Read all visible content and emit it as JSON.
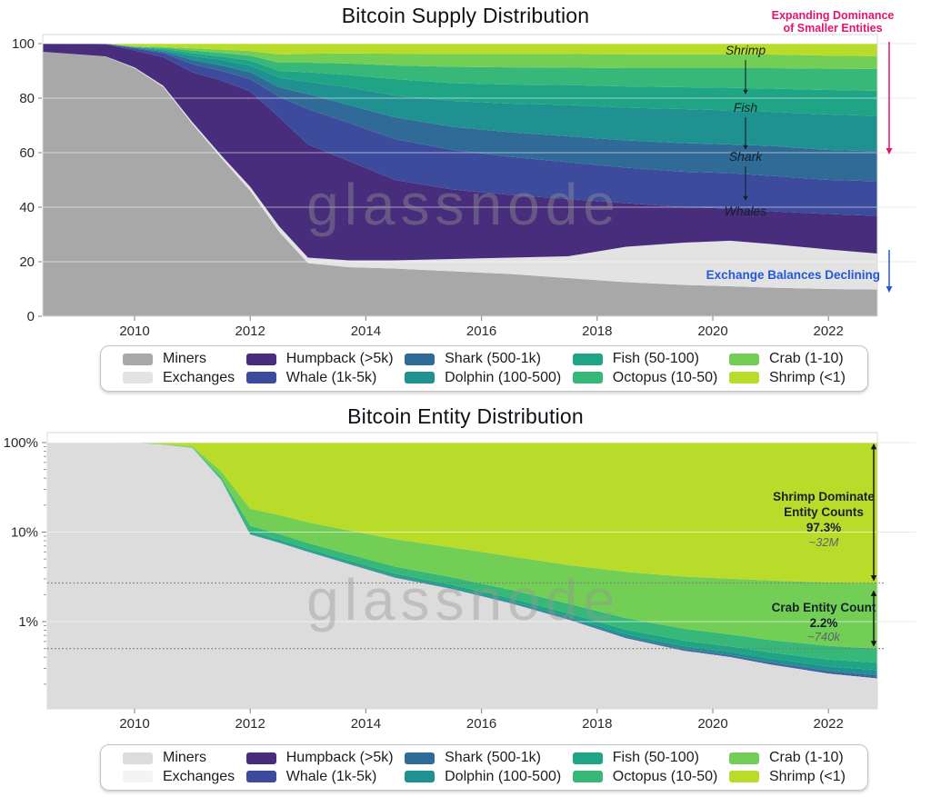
{
  "watermark": "glassnode",
  "chart_data": [
    {
      "type": "area",
      "stacked": true,
      "name": "supply",
      "title": "Bitcoin Supply Distribution",
      "x": {
        "years": [
          2008.4,
          2009.5,
          2010,
          2010.5,
          2011,
          2011.5,
          2012,
          2012.5,
          2013,
          2013.7,
          2014.5,
          2015.5,
          2016.5,
          2017.5,
          2018.5,
          2019.5,
          2020.3,
          2021,
          2022,
          2022.9
        ]
      },
      "x_tick_labels": [
        "2010",
        "2012",
        "2014",
        "2016",
        "2018",
        "2020",
        "2022"
      ],
      "x_tick_years": [
        2010,
        2012,
        2014,
        2016,
        2018,
        2020,
        2022
      ],
      "y_axis": {
        "scale": "linear",
        "range": [
          0,
          100
        ],
        "ticks": [
          {
            "v": 0,
            "label": "0"
          },
          {
            "v": 20,
            "label": "20"
          },
          {
            "v": 40,
            "label": "40"
          },
          {
            "v": 60,
            "label": "60"
          },
          {
            "v": 80,
            "label": "80"
          },
          {
            "v": 100,
            "label": "100"
          }
        ],
        "grid_values": [
          20,
          40,
          60,
          80,
          100
        ]
      },
      "series": [
        {
          "name": "Miners",
          "color": "#a8a8a8",
          "values": [
            97,
            95.3,
            91,
            84,
            70.5,
            58,
            46,
            31,
            19.5,
            18,
            17.5,
            16.5,
            15.5,
            14,
            12.5,
            11.5,
            11,
            10.5,
            10,
            9.8
          ]
        },
        {
          "name": "Exchanges",
          "color": "#e3e3e3",
          "values": [
            0,
            0.1,
            0.3,
            0.5,
            0.7,
            1,
            1.5,
            2,
            2,
            2.5,
            3,
            4.5,
            6,
            8,
            13,
            15.5,
            16.7,
            16,
            14.5,
            13.2
          ]
        },
        {
          "name": "Humpback (>5k)",
          "color": "#472d7b",
          "values": [
            3,
            4.5,
            6.2,
            10.5,
            18.3,
            27.5,
            35,
            40,
            41.5,
            36.5,
            29.5,
            25.5,
            23,
            21,
            16,
            13,
            11.8,
            12,
            13,
            13.8
          ]
        },
        {
          "name": "Whale (1k-5k)",
          "color": "#3d4b9c",
          "values": [
            0,
            0.1,
            0.7,
            1.5,
            3,
            3.5,
            4.5,
            7.5,
            13,
            14,
            15,
            14.5,
            14,
            13.5,
            13,
            13,
            13,
            13,
            12.5,
            12.7
          ]
        },
        {
          "name": "Shark (500-1k)",
          "color": "#2f6b96",
          "values": [
            0,
            0.1,
            0.3,
            0.5,
            1.5,
            2,
            2.5,
            3.5,
            5.5,
            6.5,
            8,
            8.5,
            9,
            9.5,
            10,
            10.5,
            10.5,
            11,
            11,
            11
          ]
        },
        {
          "name": "Dolphin (100-500)",
          "color": "#1f9190",
          "values": [
            0,
            0,
            0.2,
            0.6,
            1.5,
            2,
            2.5,
            3.5,
            4.5,
            6.5,
            8,
            9.5,
            10.5,
            11.5,
            12,
            12.5,
            12.5,
            12.5,
            13,
            13
          ]
        },
        {
          "name": "Fish (50-100)",
          "color": "#20a486",
          "values": [
            0,
            0,
            0.1,
            0.5,
            1,
            1.3,
            1.8,
            2.5,
            3.5,
            4.5,
            6,
            6.5,
            7,
            7.3,
            7.8,
            8,
            8.3,
            8.5,
            9,
            9.2
          ]
        },
        {
          "name": "Octopus (10-50)",
          "color": "#37b878",
          "values": [
            0,
            0,
            0.1,
            0.4,
            1,
            1.3,
            1.8,
            3,
            3.5,
            4.2,
            5,
            6,
            6.3,
            6.4,
            6.7,
            7,
            7.2,
            7.5,
            7.8,
            8
          ]
        },
        {
          "name": "Crab (1-10)",
          "color": "#72ce55",
          "values": [
            0,
            0,
            0.05,
            0.3,
            0.8,
            1.2,
            1.7,
            3,
            3.3,
            3.7,
            4.3,
            4.7,
            4.9,
            5,
            5.1,
            5.1,
            5.1,
            5,
            4.8,
            4.7
          ]
        },
        {
          "name": "Shrimp (<1)",
          "color": "#b9dc2a",
          "values": [
            0,
            0,
            1.05,
            1.2,
            1.7,
            2.2,
            2.7,
            4,
            3.7,
            3.6,
            3.7,
            3.8,
            3.8,
            3.8,
            3.9,
            3.9,
            3.9,
            4,
            4.4,
            4.6
          ]
        }
      ],
      "annotations": {
        "expanding_dominance": {
          "lines": [
            "Expanding Dominance",
            "of Smaller Entities"
          ],
          "color": "#e3146e"
        },
        "exchange_declining": {
          "text": "Exchange Balances Declining",
          "color": "#2458d8"
        },
        "band_labels": [
          "Shrimp",
          "Fish",
          "Shark",
          "Whales"
        ]
      }
    },
    {
      "type": "area",
      "stacked": true,
      "name": "entity",
      "title": "Bitcoin Entity Distribution",
      "x": {
        "years": [
          2008.4,
          2009.5,
          2010,
          2010.5,
          2011,
          2011.5,
          2012,
          2012.5,
          2013,
          2013.7,
          2014.5,
          2015.5,
          2016.5,
          2017.5,
          2018.5,
          2019.5,
          2020.3,
          2021,
          2022,
          2022.9
        ]
      },
      "x_tick_labels": [
        "2010",
        "2012",
        "2014",
        "2016",
        "2018",
        "2020",
        "2022"
      ],
      "x_tick_years": [
        2010,
        2012,
        2014,
        2016,
        2018,
        2020,
        2022
      ],
      "y_axis": {
        "scale": "log",
        "range_pct": [
          0.107,
          100
        ],
        "ticks": [
          {
            "v": 100,
            "label": "100%"
          },
          {
            "v": 10,
            "label": "10%"
          },
          {
            "v": 1,
            "label": "1%"
          }
        ],
        "grid_values": [
          100,
          10,
          1
        ]
      },
      "series": [
        {
          "name": "Miners",
          "color": "#dcdcdc",
          "values": [
            100,
            100,
            99.8,
            95,
            87,
            38,
            9.4,
            7.6,
            6,
            4.4,
            3.1,
            2.3,
            1.6,
            1.05,
            0.65,
            0.47,
            0.4,
            0.33,
            0.26,
            0.23
          ]
        },
        {
          "name": "Exchanges",
          "color": "#f4f4f4",
          "values": [
            0,
            0,
            0.005,
            0.005,
            0.005,
            0.01,
            0.008,
            0.007,
            0.006,
            0.005,
            0.004,
            0.003,
            0.003,
            0.002,
            0.002,
            0.002,
            0.002,
            0.002,
            0.002,
            0.002
          ]
        },
        {
          "name": "Humpback (>5k)",
          "color": "#472d7b",
          "values": [
            0,
            0,
            0.001,
            0.002,
            0.003,
            0.004,
            0.004,
            0.004,
            0.003,
            0.003,
            0.003,
            0.003,
            0.003,
            0.002,
            0.002,
            0.002,
            0.002,
            0.002,
            0.002,
            0.002
          ]
        },
        {
          "name": "Whale (1k-5k)",
          "color": "#3d4b9c",
          "values": [
            0,
            0,
            0.002,
            0.004,
            0.006,
            0.01,
            0.009,
            0.009,
            0.008,
            0.008,
            0.007,
            0.007,
            0.007,
            0.006,
            0.006,
            0.006,
            0.006,
            0.006,
            0.006,
            0.006
          ]
        },
        {
          "name": "Shark (500-1k)",
          "color": "#2f6b96",
          "values": [
            0,
            0,
            0.003,
            0.01,
            0.03,
            0.07,
            0.06,
            0.05,
            0.042,
            0.036,
            0.03,
            0.025,
            0.02,
            0.017,
            0.015,
            0.013,
            0.012,
            0.012,
            0.012,
            0.012
          ]
        },
        {
          "name": "Dolphin (100-500)",
          "color": "#1f9190",
          "values": [
            0,
            0,
            0.005,
            0.03,
            0.08,
            0.22,
            0.18,
            0.15,
            0.12,
            0.1,
            0.085,
            0.07,
            0.06,
            0.05,
            0.045,
            0.04,
            0.038,
            0.036,
            0.035,
            0.035
          ]
        },
        {
          "name": "Fish (50-100)",
          "color": "#20a486",
          "values": [
            0,
            0,
            0.01,
            0.08,
            0.25,
            0.6,
            0.5,
            0.4,
            0.32,
            0.26,
            0.2,
            0.16,
            0.13,
            0.11,
            0.09,
            0.08,
            0.07,
            0.065,
            0.06,
            0.06
          ]
        },
        {
          "name": "Octopus (10-50)",
          "color": "#37b878",
          "values": [
            0,
            0,
            0.02,
            0.3,
            0.7,
            1.9,
            1.6,
            1.3,
            1.05,
            0.85,
            0.7,
            0.55,
            0.45,
            0.35,
            0.28,
            0.22,
            0.19,
            0.17,
            0.16,
            0.15
          ]
        },
        {
          "name": "Crab (1-10)",
          "color": "#72ce55",
          "values": [
            0,
            0,
            0.05,
            1.2,
            2,
            7,
            6.5,
            6,
            5.3,
            4.8,
            4.2,
            3.6,
            3.1,
            2.7,
            2.5,
            2.35,
            2.3,
            2.25,
            2.2,
            2.2
          ]
        },
        {
          "name": "Shrimp (<1)",
          "color": "#b9dc2a",
          "values": [
            0,
            0,
            0.1,
            3.4,
            9.9,
            52.2,
            81.7,
            84.5,
            87.2,
            89.5,
            91.7,
            93.3,
            94.6,
            95.7,
            96.4,
            96.8,
            97,
            97.1,
            97.3,
            97.3
          ]
        }
      ],
      "annotations": {
        "shrimp_block": {
          "lines": [
            "Shrimp Dominate",
            "Entity Counts"
          ],
          "pct": "97.3%",
          "count": "~32M"
        },
        "crab_block": {
          "lines": [
            "Crab Entity Count"
          ],
          "pct": "2.2%",
          "count": "~740k"
        },
        "threshold_pcts": [
          2.7,
          0.5
        ]
      }
    }
  ]
}
